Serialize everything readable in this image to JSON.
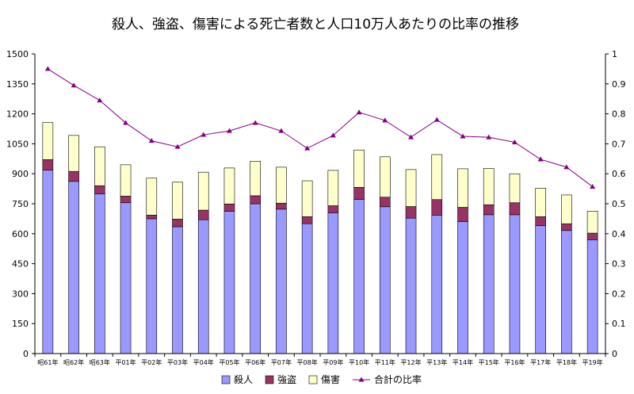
{
  "chart_data": {
    "type": "bar",
    "title": "殺人、強盗、傷害による死亡者数と人口10万人あたりの比率の推移",
    "categories": [
      "昭61年",
      "昭62年",
      "昭63年",
      "平01年",
      "平02年",
      "平03年",
      "平04年",
      "平05年",
      "平06年",
      "平07年",
      "平08年",
      "平09年",
      "平10年",
      "平11年",
      "平12年",
      "平13年",
      "平14年",
      "平15年",
      "平16年",
      "平17年",
      "平18年",
      "平19年"
    ],
    "stacked": true,
    "ylim": [
      0,
      1500
    ],
    "yticks": [
      "0",
      "150",
      "300",
      "450",
      "600",
      "750",
      "900",
      "1050",
      "1200",
      "1350",
      "1500"
    ],
    "y2lim": [
      0,
      1
    ],
    "y2ticks": [
      "0",
      "0.1",
      "0.2",
      "0.3",
      "0.4",
      "0.5",
      "0.6",
      "0.7",
      "0.8",
      "0.9",
      "1"
    ],
    "series": [
      {
        "name": "殺人",
        "type": "bar",
        "axis": "left",
        "color": "#9999ff",
        "values": [
          918,
          862,
          800,
          755,
          675,
          635,
          670,
          712,
          750,
          723,
          650,
          705,
          772,
          735,
          678,
          693,
          660,
          695,
          695,
          640,
          616,
          570
        ]
      },
      {
        "name": "強盗",
        "type": "bar",
        "axis": "left",
        "color": "#993366",
        "values": [
          53,
          50,
          40,
          33,
          18,
          38,
          48,
          37,
          40,
          30,
          35,
          35,
          60,
          48,
          58,
          78,
          72,
          50,
          60,
          45,
          34,
          33
        ]
      },
      {
        "name": "傷害",
        "type": "bar",
        "axis": "left",
        "color": "#ffffcc",
        "values": [
          185,
          180,
          195,
          157,
          185,
          185,
          190,
          180,
          173,
          180,
          180,
          177,
          187,
          202,
          185,
          225,
          193,
          182,
          145,
          143,
          144,
          110
        ]
      },
      {
        "name": "合計の比率",
        "type": "line",
        "axis": "right",
        "color": "#800080",
        "values": [
          0.95,
          0.895,
          0.845,
          0.77,
          0.71,
          0.69,
          0.73,
          0.743,
          0.77,
          0.743,
          0.685,
          0.728,
          0.805,
          0.778,
          0.722,
          0.78,
          0.725,
          0.722,
          0.705,
          0.648,
          0.622,
          0.557
        ]
      }
    ],
    "legend_position": "bottom",
    "grid": "none"
  }
}
